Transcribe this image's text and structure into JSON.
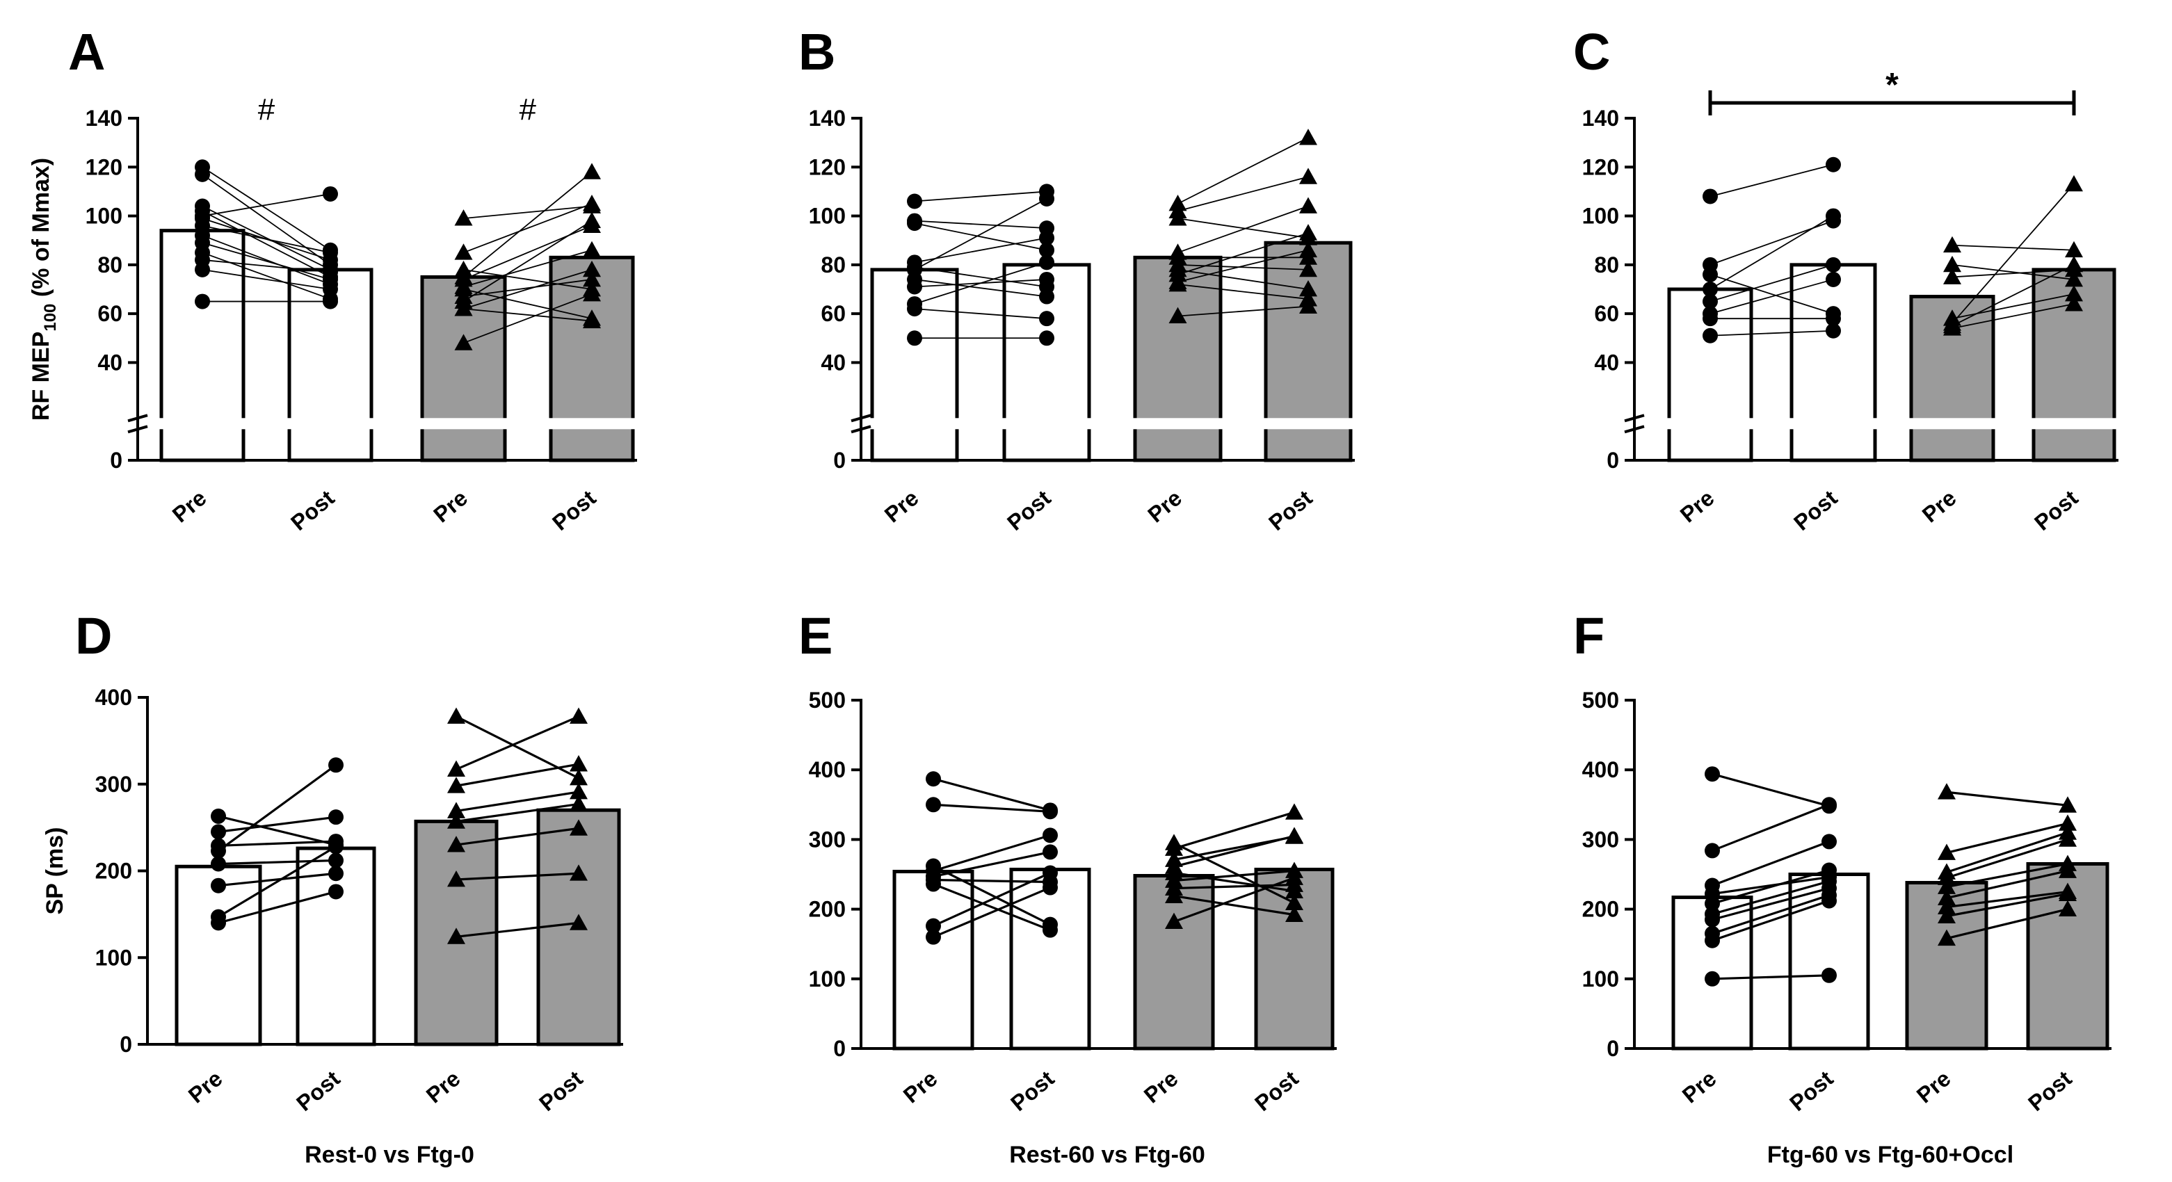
{
  "colors": {
    "pre_bar": "#ffffff",
    "post_bar": "#9b9b9b",
    "ink": "#000000"
  },
  "chart_data": [
    {
      "type": "bar",
      "panel": "A",
      "condition": "",
      "ylabel": "RF MEP",
      "ylabel_sub": "100",
      "ylabel_suffix": " (% of Mmax)",
      "ylim": [
        0,
        140
      ],
      "axis_break": true,
      "ticks": [
        0,
        40,
        60,
        80,
        100,
        120,
        140
      ],
      "categories": [
        "Pre",
        "Post",
        "Pre",
        "Post"
      ],
      "values": [
        94,
        78,
        75,
        83
      ],
      "annotations": [
        {
          "text": "#",
          "group": 0
        },
        {
          "text": "#",
          "group": 1
        }
      ],
      "individual": [
        [
          [
            120,
            86
          ],
          [
            117,
            80
          ],
          [
            104,
            78
          ],
          [
            102,
            75
          ],
          [
            99,
            82
          ],
          [
            96,
            85
          ],
          [
            92,
            72
          ],
          [
            89,
            74
          ],
          [
            85,
            66
          ],
          [
            82,
            77
          ],
          [
            78,
            70
          ],
          [
            65,
            65
          ],
          [
            100,
            109
          ]
        ],
        [
          [
            99,
            104
          ],
          [
            85,
            105
          ],
          [
            78,
            70
          ],
          [
            74,
            96
          ],
          [
            71,
            86
          ],
          [
            65,
            98
          ],
          [
            62,
            78
          ],
          [
            62,
            57
          ],
          [
            48,
            68
          ],
          [
            75,
            118
          ],
          [
            67,
            74
          ],
          [
            70,
            58
          ]
        ]
      ]
    },
    {
      "type": "bar",
      "panel": "B",
      "condition": "",
      "ylim": [
        0,
        140
      ],
      "axis_break": true,
      "ticks": [
        0,
        40,
        60,
        80,
        100,
        120,
        140
      ],
      "categories": [
        "Pre",
        "Post",
        "Pre",
        "Post"
      ],
      "values": [
        78,
        80,
        83,
        89
      ],
      "annotations": [],
      "individual": [
        [
          [
            106,
            110
          ],
          [
            98,
            95
          ],
          [
            97,
            86
          ],
          [
            81,
            91
          ],
          [
            79,
            71
          ],
          [
            78,
            107
          ],
          [
            74,
            67
          ],
          [
            71,
            74
          ],
          [
            64,
            81
          ],
          [
            62,
            58
          ],
          [
            50,
            50
          ]
        ],
        [
          [
            105,
            132
          ],
          [
            102,
            116
          ],
          [
            99,
            91
          ],
          [
            85,
            104
          ],
          [
            83,
            83
          ],
          [
            80,
            78
          ],
          [
            78,
            70
          ],
          [
            76,
            93
          ],
          [
            73,
            86
          ],
          [
            72,
            66
          ],
          [
            59,
            63
          ]
        ]
      ]
    },
    {
      "type": "bar",
      "panel": "C",
      "condition": "",
      "ylim": [
        0,
        140
      ],
      "axis_break": true,
      "ticks": [
        0,
        40,
        60,
        80,
        100,
        120,
        140
      ],
      "categories": [
        "Pre",
        "Post",
        "Pre",
        "Post"
      ],
      "values": [
        70,
        80,
        67,
        78
      ],
      "annotations": [
        {
          "text": "*",
          "from": 0,
          "to": 3
        }
      ],
      "individual": [
        [
          [
            108,
            121
          ],
          [
            80,
            98
          ],
          [
            76,
            60
          ],
          [
            70,
            100
          ],
          [
            65,
            80
          ],
          [
            60,
            74
          ],
          [
            58,
            58
          ],
          [
            51,
            53
          ]
        ],
        [
          [
            88,
            86
          ],
          [
            80,
            74
          ],
          [
            75,
            78
          ],
          [
            58,
            68
          ],
          [
            56,
            113
          ],
          [
            55,
            80
          ],
          [
            54,
            64
          ]
        ]
      ]
    },
    {
      "type": "bar",
      "panel": "D",
      "condition": "Rest-0 vs Ftg-0",
      "ylabel": "SP (ms)",
      "ylim": [
        0,
        400
      ],
      "axis_break": false,
      "ticks": [
        0,
        100,
        200,
        300,
        400
      ],
      "categories": [
        "Pre",
        "Post",
        "Pre",
        "Post"
      ],
      "values": [
        205,
        226,
        257,
        270
      ],
      "annotations": [],
      "individual": [
        [
          [
            263,
            230
          ],
          [
            245,
            262
          ],
          [
            229,
            234
          ],
          [
            223,
            322
          ],
          [
            208,
            212
          ],
          [
            183,
            197
          ],
          [
            147,
            228
          ],
          [
            140,
            176
          ]
        ],
        [
          [
            378,
            307
          ],
          [
            317,
            378
          ],
          [
            298,
            323
          ],
          [
            269,
            291
          ],
          [
            257,
            277
          ],
          [
            230,
            249
          ],
          [
            190,
            197
          ],
          [
            124,
            140
          ]
        ]
      ]
    },
    {
      "type": "bar",
      "panel": "E",
      "condition": "Rest-60 vs Ftg-60",
      "ylim": [
        0,
        500
      ],
      "axis_break": false,
      "ticks": [
        0,
        100,
        200,
        300,
        400,
        500
      ],
      "categories": [
        "Pre",
        "Post",
        "Pre",
        "Post"
      ],
      "values": [
        254,
        257,
        248,
        257
      ],
      "annotations": [],
      "individual": [
        [
          [
            387,
            342
          ],
          [
            350,
            340
          ],
          [
            262,
            178
          ],
          [
            255,
            306
          ],
          [
            247,
            282
          ],
          [
            236,
            170
          ],
          [
            176,
            252
          ],
          [
            160,
            231
          ],
          [
            242,
            239
          ]
        ],
        [
          [
            295,
            209
          ],
          [
            287,
            339
          ],
          [
            271,
            304
          ],
          [
            261,
            305
          ],
          [
            241,
            255
          ],
          [
            230,
            235
          ],
          [
            219,
            192
          ],
          [
            182,
            245
          ],
          [
            252,
            226
          ]
        ]
      ]
    },
    {
      "type": "bar",
      "panel": "F",
      "condition": "Ftg-60 vs Ftg-60+Occl",
      "ylim": [
        0,
        500
      ],
      "axis_break": false,
      "ticks": [
        0,
        100,
        200,
        300,
        400,
        500
      ],
      "categories": [
        "Pre",
        "Post",
        "Pre",
        "Post"
      ],
      "values": [
        217,
        250,
        238,
        265
      ],
      "annotations": [],
      "individual": [
        [
          [
            394,
            348
          ],
          [
            284,
            350
          ],
          [
            234,
            297
          ],
          [
            222,
            246
          ],
          [
            208,
            256
          ],
          [
            193,
            240
          ],
          [
            185,
            230
          ],
          [
            165,
            220
          ],
          [
            155,
            212
          ],
          [
            100,
            105
          ]
        ],
        [
          [
            368,
            349
          ],
          [
            281,
            323
          ],
          [
            253,
            310
          ],
          [
            245,
            300
          ],
          [
            232,
            265
          ],
          [
            216,
            255
          ],
          [
            203,
            225
          ],
          [
            190,
            222
          ],
          [
            158,
            200
          ]
        ]
      ]
    }
  ]
}
